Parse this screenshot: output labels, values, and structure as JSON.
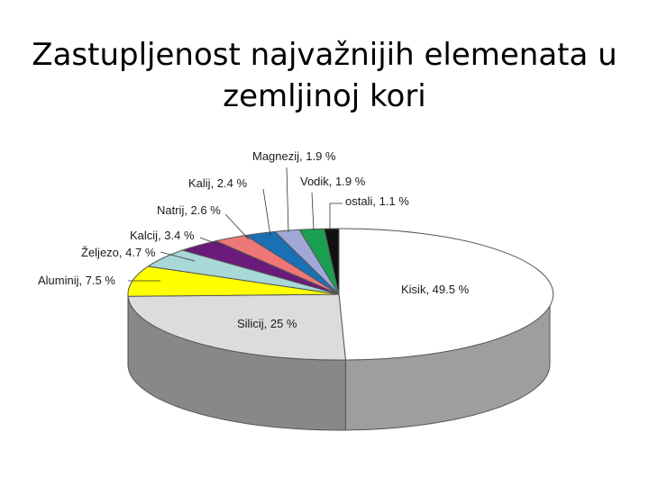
{
  "page": {
    "title_line1": "Zastupljenost najvažnijih elemenata u",
    "title_line2": "zemljinoj kori"
  },
  "chart_data": {
    "type": "pie",
    "title": "Zastupljenost najvažnijih elemenata u zemljinoj kori",
    "style": "3d",
    "slices": [
      {
        "label": "Kisik, 49.5 %",
        "value": 49.5,
        "color": "#ffffff"
      },
      {
        "label": "Silicij, 25 %",
        "value": 25,
        "color": "#dcdcdc"
      },
      {
        "label": "Aluminij, 7.5 %",
        "value": 7.5,
        "color": "#ffff00"
      },
      {
        "label": "Željezo, 4.7 %",
        "value": 4.7,
        "color": "#a8d8d8"
      },
      {
        "label": "Kalcij, 3.4 %",
        "value": 3.4,
        "color": "#6a1a7a"
      },
      {
        "label": "Natrij, 2.6 %",
        "value": 2.6,
        "color": "#ee7777"
      },
      {
        "label": "Kalij, 2.4 %",
        "value": 2.4,
        "color": "#1a6fb5"
      },
      {
        "label": "Magnezij, 1.9 %",
        "value": 1.9,
        "color": "#a0a8d8"
      },
      {
        "label": "Vodik, 1.9 %",
        "value": 1.9,
        "color": "#1aa050"
      },
      {
        "label": "ostali, 1.1 %",
        "value": 1.1,
        "color": "#111111"
      }
    ]
  }
}
